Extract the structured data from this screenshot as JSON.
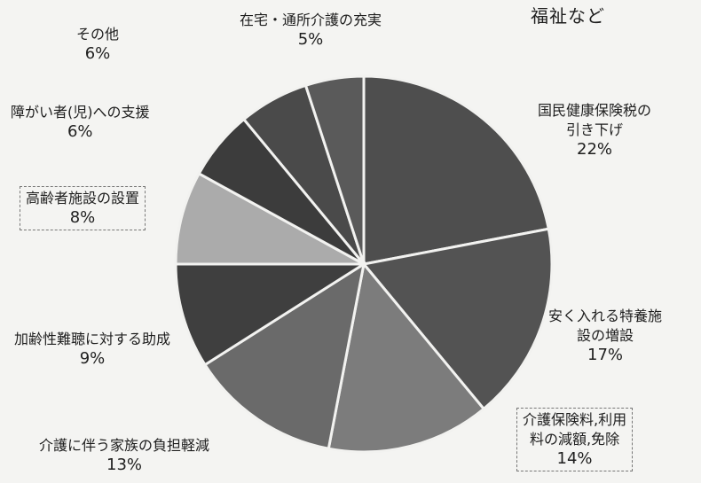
{
  "header": {
    "title": "福祉など"
  },
  "colors": {
    "stroke": "#f2f2f0"
  },
  "chart_data": {
    "type": "pie",
    "start_angle_deg": 0,
    "direction": "clockwise",
    "slices": [
      {
        "label_lines": [
          "国民健康保険税の",
          "引き下げ"
        ],
        "value": 22,
        "pct_text": "22%",
        "color": "#4e4e4e"
      },
      {
        "label_lines": [
          "安く入れる特養施",
          "設の増設"
        ],
        "value": 17,
        "pct_text": "17%",
        "color": "#535353"
      },
      {
        "label_lines": [
          "介護保険料,利用",
          "料の減額,免除"
        ],
        "value": 14,
        "pct_text": "14%",
        "color": "#7c7c7c"
      },
      {
        "label_lines": [
          "介護に伴う家族の負担軽減"
        ],
        "value": 13,
        "pct_text": "13%",
        "color": "#6a6a6a"
      },
      {
        "label_lines": [
          "加齢性難聴に対する助成"
        ],
        "value": 9,
        "pct_text": "9%",
        "color": "#3f3f3f"
      },
      {
        "label_lines": [
          "高齢者施設の設置"
        ],
        "value": 8,
        "pct_text": "8%",
        "color": "#ababab"
      },
      {
        "label_lines": [
          "障がい者(児)への支援"
        ],
        "value": 6,
        "pct_text": "6%",
        "color": "#3c3c3c"
      },
      {
        "label_lines": [
          "その他"
        ],
        "value": 6,
        "pct_text": "6%",
        "color": "#4a4a4a"
      },
      {
        "label_lines": [
          "在宅・通所介護の充実"
        ],
        "value": 5,
        "pct_text": "5%",
        "color": "#5a5a5a"
      }
    ]
  }
}
